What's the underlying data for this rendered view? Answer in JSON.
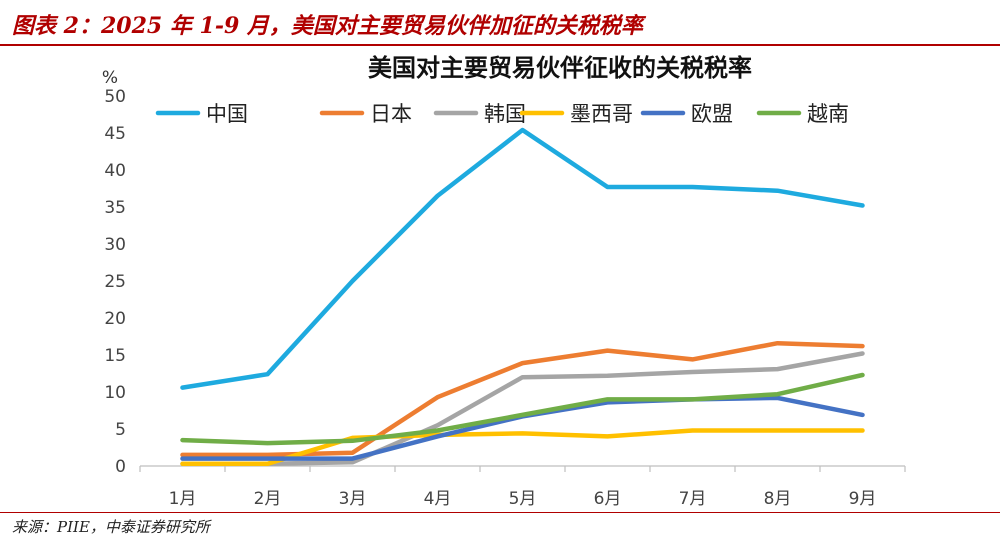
{
  "header": {
    "figure_title": "图表 2：2025 年 1-9 月，美国对主要贸易伙伴加征的关税税率"
  },
  "footer": {
    "source": "来源：PIIE，中泰证券研究所"
  },
  "colors": {
    "accent_red": "#b00000"
  },
  "chart_data": {
    "type": "line",
    "title": "美国对主要贸易伙伴征收的关税税率",
    "ylabel": "%",
    "xlabel": "",
    "categories": [
      "1月",
      "2月",
      "3月",
      "4月",
      "5月",
      "6月",
      "7月",
      "8月",
      "9月"
    ],
    "ylim": [
      0,
      50
    ],
    "yticks": [
      0,
      5,
      10,
      15,
      20,
      25,
      30,
      35,
      40,
      45,
      50
    ],
    "grid": false,
    "legend_position": "top",
    "series": [
      {
        "name": "中国",
        "color": "#1EAADF",
        "values": [
          10.6,
          12.4,
          25.0,
          36.5,
          45.4,
          37.7,
          37.7,
          37.2,
          35.2
        ]
      },
      {
        "name": "日本",
        "color": "#ED7D31",
        "values": [
          1.5,
          1.5,
          1.8,
          9.3,
          13.9,
          15.6,
          14.4,
          16.6,
          16.2
        ]
      },
      {
        "name": "韩国",
        "color": "#A5A5A5",
        "values": [
          0.3,
          0.3,
          0.5,
          5.5,
          12.0,
          12.2,
          12.7,
          13.1,
          15.2
        ]
      },
      {
        "name": "墨西哥",
        "color": "#FFC000",
        "values": [
          0.3,
          0.3,
          3.8,
          4.2,
          4.4,
          4.0,
          4.8,
          4.8,
          4.8
        ]
      },
      {
        "name": "欧盟",
        "color": "#4472C4",
        "values": [
          1.0,
          1.0,
          1.0,
          4.0,
          6.7,
          8.6,
          9.0,
          9.2,
          6.9
        ]
      },
      {
        "name": "越南",
        "color": "#70AD47",
        "values": [
          3.5,
          3.1,
          3.4,
          4.8,
          6.9,
          9.0,
          9.0,
          9.7,
          12.3
        ]
      }
    ]
  }
}
